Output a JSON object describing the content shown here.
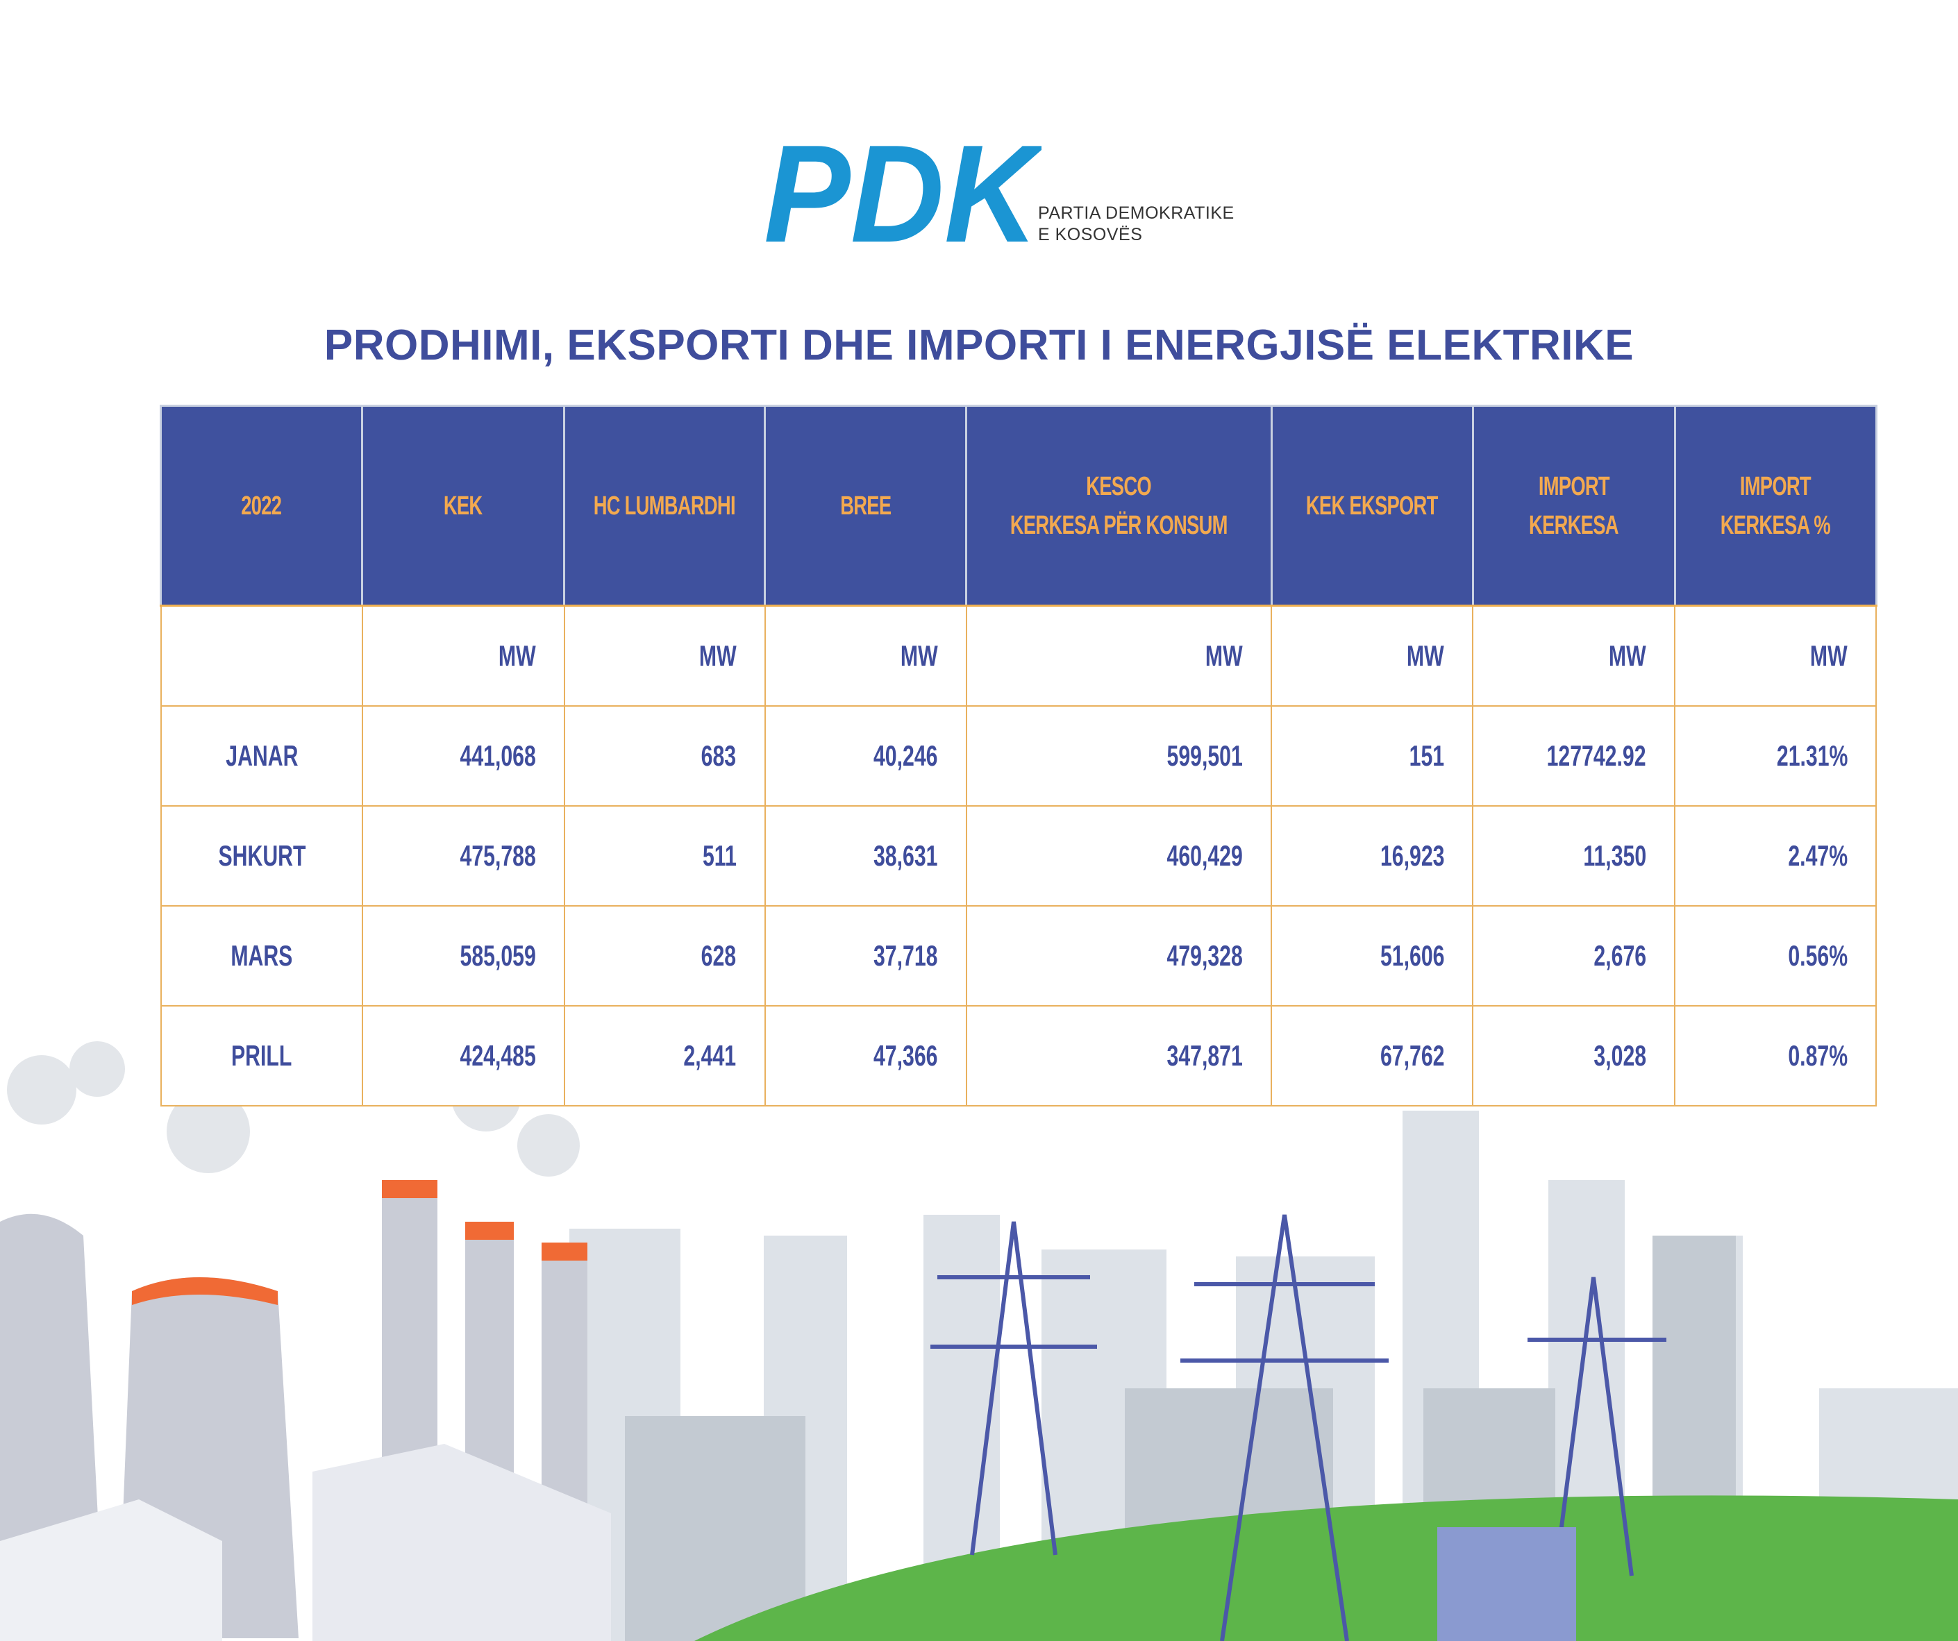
{
  "logo": {
    "text": "PDK",
    "subtitle_line1": "PARTIA DEMOKRATIKE",
    "subtitle_line2": "E KOSOVËS",
    "color": "#1b95d3"
  },
  "title": "PRODHIMI, EKSPORTI DHE IMPORTI I ENERGJISË ELEKTRIKE",
  "table": {
    "headers": [
      [
        "2022"
      ],
      [
        "KEK"
      ],
      [
        "HC LUMBARDHI"
      ],
      [
        "BREE"
      ],
      [
        "KESCO",
        "KERKESA PËR KONSUM"
      ],
      [
        "KEK EKSPORT"
      ],
      [
        "IMPORT",
        "KERKESA"
      ],
      [
        "IMPORT",
        "KERKESA %"
      ]
    ],
    "units": [
      "",
      "MW",
      "MW",
      "MW",
      "MW",
      "MW",
      "MW",
      "MW"
    ],
    "rows": [
      [
        "JANAR",
        "441,068",
        "683",
        "40,246",
        "599,501",
        "151",
        "127742.92",
        "21.31%"
      ],
      [
        "SHKURT",
        "475,788",
        "511",
        "38,631",
        "460,429",
        "16,923",
        "11,350",
        "2.47%"
      ],
      [
        "MARS",
        "585,059",
        "628",
        "37,718",
        "479,328",
        "51,606",
        "2,676",
        "0.56%"
      ],
      [
        "PRILL",
        "424,485",
        "2,441",
        "47,366",
        "347,871",
        "67,762",
        "3,028",
        "0.87%"
      ]
    ]
  },
  "colors": {
    "header_bg": "#3f519e",
    "header_text": "#f3a94f",
    "cell_text": "#3f4d9c",
    "border": "#e9b15e"
  }
}
